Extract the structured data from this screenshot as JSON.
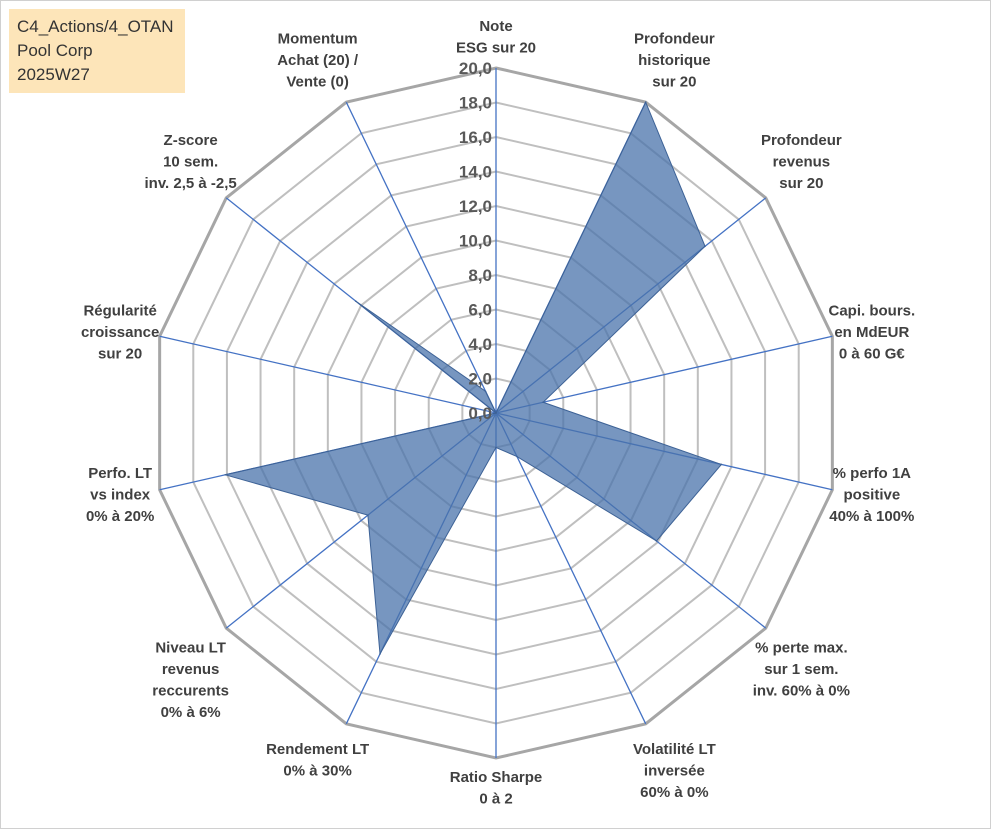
{
  "info": {
    "line1": "C4_Actions/4_OTAN",
    "line2": "Pool Corp",
    "line3": "2025W27"
  },
  "chart_data": {
    "type": "radar",
    "r_min": 0,
    "r_max": 20,
    "r_step": 2,
    "tick_labels": [
      "0,0",
      "2,0",
      "4,0",
      "6,0",
      "8,0",
      "10,0",
      "12,0",
      "14,0",
      "16,0",
      "18,0",
      "20,0"
    ],
    "grid": true,
    "axes": [
      {
        "label": [
          "Note",
          "ESG sur 20"
        ],
        "value": 0
      },
      {
        "label": [
          "Profondeur",
          "historique",
          "sur 20"
        ],
        "value": 20
      },
      {
        "label": [
          "Profondeur",
          "revenus",
          "sur 20"
        ],
        "value": 15.5
      },
      {
        "label": [
          "Capi. bours.",
          "en MdEUR",
          "0 à 60 G€"
        ],
        "value": 2.8
      },
      {
        "label": [
          "% perfo 1A",
          "positive",
          "40% à 100%"
        ],
        "value": 13.4
      },
      {
        "label": [
          "% perte max.",
          "sur 1 sem.",
          "inv. 60% à 0%"
        ],
        "value": 11.9
      },
      {
        "label": [
          "Volatilité LT",
          "inversée",
          "60% à 0%"
        ],
        "value": 2.8
      },
      {
        "label": [
          "Ratio Sharpe",
          "0 à 2"
        ],
        "value": 2.0
      },
      {
        "label": [
          "Rendement LT",
          "0% à 30%"
        ],
        "value": 15.5
      },
      {
        "label": [
          "Niveau LT",
          "revenus",
          "reccurents",
          "0% à 6%"
        ],
        "value": 9.5
      },
      {
        "label": [
          "Perfo. LT",
          "vs index",
          "0% à 20%"
        ],
        "value": 16.1
      },
      {
        "label": [
          "Régularité",
          "croissance",
          "sur 20"
        ],
        "value": 0
      },
      {
        "label": [
          "Z-score",
          "10 sem.",
          "inv. 2,5 à -2,5"
        ],
        "value": 10.4
      },
      {
        "label": [
          "Momentum",
          "Achat (20) /",
          "Vente (0)"
        ],
        "value": 1.4
      }
    ],
    "colors": {
      "fill": "#4a73ab",
      "fill_opacity": 0.75,
      "spoke": "#4472c4",
      "grid": "#bfbfbf",
      "outer": "#a6a6a6"
    }
  }
}
